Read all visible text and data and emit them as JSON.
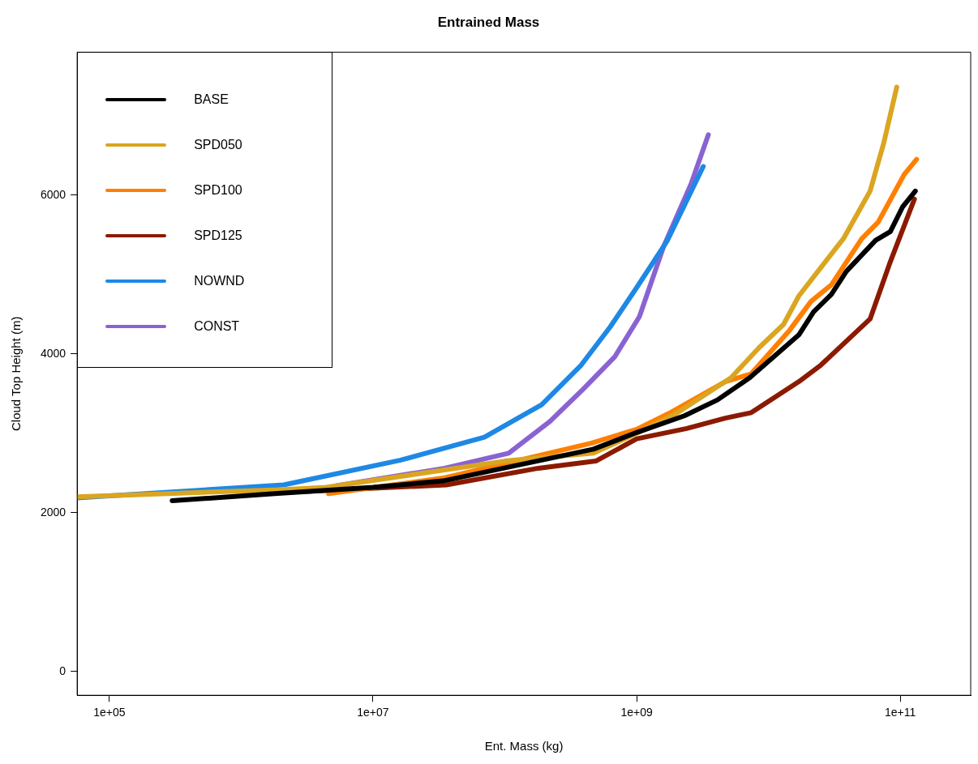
{
  "chart_data": {
    "type": "line",
    "title": "Entrained Mass",
    "xlabel": "Ent. Mass (kg)",
    "ylabel": "Cloud Top Height (m)",
    "log": "x",
    "xlim": [
      57000,
      342000000000
    ],
    "xticks": [
      {
        "value": 100000,
        "label": "1e+05"
      },
      {
        "value": 10000000,
        "label": "1e+07"
      },
      {
        "value": 1000000000,
        "label": "1e+09"
      },
      {
        "value": 100000000000,
        "label": "1e+11"
      }
    ],
    "ylim": [
      -300,
      7800
    ],
    "yticks": [
      0,
      2000,
      4000,
      6000
    ],
    "legend": "top left",
    "series": [
      {
        "name": "BASE",
        "color": "#000000",
        "x": [
          300000.0,
          1800000.0,
          10000000.0,
          34000000.0,
          470000000.0,
          1000000000.0,
          2300000000.0,
          4100000000.0,
          7200000000.0,
          17000000000.0,
          22000000000.0,
          30000000000.0,
          39000000000.0,
          65000000000.0,
          84000000000.0,
          104000000000.0,
          130000000000.0
        ],
        "values": [
          2150,
          2240,
          2320,
          2400,
          2800,
          3010,
          3220,
          3420,
          3700,
          4240,
          4530,
          4750,
          5040,
          5430,
          5540,
          5850,
          6050
        ]
      },
      {
        "name": "SPD050",
        "color": "#daa520",
        "x": [
          57000.0,
          2000000.0,
          4400000.0,
          100000000.0,
          470000000.0,
          1000000000.0,
          2000000000.0,
          5200000000.0,
          8500000000.0,
          13000000000.0,
          17000000000.0,
          27000000000.0,
          37000000000.0,
          59000000000.0,
          75000000000.0,
          94000000000.0
        ],
        "values": [
          2200,
          2290,
          2320,
          2650,
          2750,
          3000,
          3250,
          3700,
          4080,
          4370,
          4730,
          5160,
          5450,
          6050,
          6660,
          7360
        ]
      },
      {
        "name": "SPD100",
        "color": "#ff7f00",
        "x": [
          4600000.0,
          35000000.0,
          450000000.0,
          1000000000.0,
          1800000000.0,
          4700000000.0,
          7400000000.0,
          14500000000.0,
          21000000000.0,
          30000000000.0,
          51000000000.0,
          68000000000.0,
          107000000000.0,
          133000000000.0
        ],
        "values": [
          2240,
          2440,
          2875,
          3050,
          3260,
          3650,
          3750,
          4300,
          4660,
          4870,
          5450,
          5660,
          6260,
          6450
        ]
      },
      {
        "name": "SPD125",
        "color": "#8b1a00",
        "x": [
          1800000.0,
          36000000.0,
          180000000.0,
          490000000.0,
          1000000000.0,
          2400000000.0,
          4700000000.0,
          7400000000.0,
          17000000000.0,
          25000000000.0,
          59000000000.0,
          84000000000.0,
          128000000000.0
        ],
        "values": [
          2250,
          2350,
          2560,
          2650,
          2930,
          3060,
          3190,
          3260,
          3650,
          3860,
          4440,
          5160,
          5950
        ]
      },
      {
        "name": "NOWND",
        "color": "#1e88e5",
        "x": [
          57000.0,
          2100000.0,
          16000000.0,
          70000000.0,
          190000000.0,
          380000000.0,
          630000000.0,
          1000000000.0,
          1700000000.0,
          3200000000.0
        ],
        "values": [
          2186,
          2350,
          2660,
          2950,
          3360,
          3860,
          4340,
          4835,
          5420,
          6360
        ]
      },
      {
        "name": "CONST",
        "color": "#8a63d2",
        "x": [
          5300000.0,
          35000000.0,
          107000000.0,
          220000000.0,
          390000000.0,
          680000000.0,
          1050000000.0,
          1600000000.0,
          2600000000.0,
          3500000000.0
        ],
        "values": [
          2340,
          2560,
          2750,
          3150,
          3550,
          3960,
          4470,
          5350,
          6150,
          6760
        ]
      }
    ]
  }
}
